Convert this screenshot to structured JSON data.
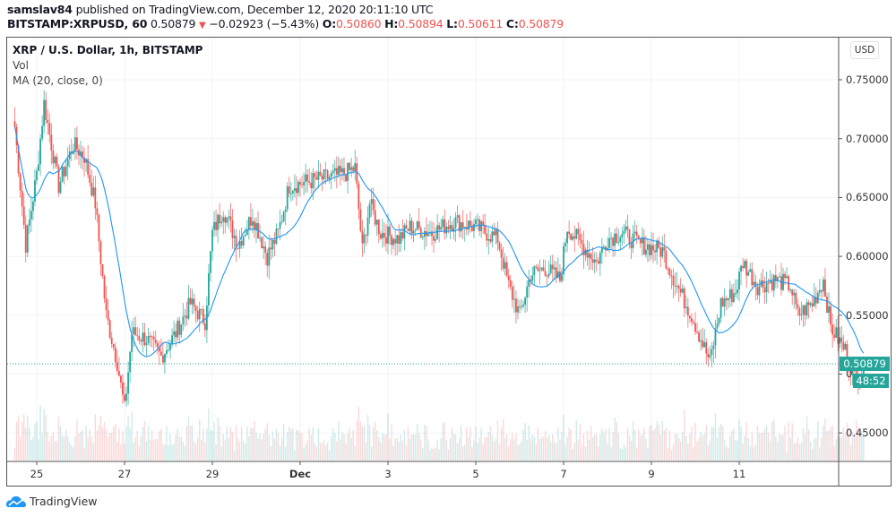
{
  "header": {
    "author": "samslav84",
    "published_text": " published on TradingView.com, December 12, 2020 20:11:10 UTC",
    "symbol": "BITSTAMP:XRPUSD, 60",
    "last_price": "0.50879",
    "change_icon": "down-triangle-icon",
    "change": "−0.02923 (−5.43%)",
    "ohlc": {
      "o_label": "O:",
      "o": "0.50860",
      "h_label": "H:",
      "h": "0.50894",
      "l_label": "L:",
      "l": "0.50611",
      "c_label": "C:",
      "c": "0.50879"
    }
  },
  "legend": {
    "title": "XRP / U.S. Dollar, 1h, BITSTAMP",
    "vol": "Vol",
    "ma": "MA (20, close, 0)"
  },
  "price_axis": {
    "currency": "USD",
    "ticks": [
      "0.75000",
      "0.70000",
      "0.65000",
      "0.60000",
      "0.55000",
      "0.45000"
    ],
    "hidden_tick_partial": "0.",
    "last_price_label": "0.50879",
    "countdown_label": "48:52"
  },
  "time_axis": {
    "ticks": [
      "25",
      "27",
      "29",
      "Dec",
      "3",
      "5",
      "7",
      "9",
      "11"
    ]
  },
  "footer": {
    "brand": "TradingView"
  },
  "colors": {
    "up": "#26a69a",
    "down": "#ef5350",
    "ma": "#2196f3",
    "grid": "#f0f3fa",
    "last_line": "#26a69a"
  },
  "chart_data": {
    "type": "candlestick",
    "title": "XRP / U.S. Dollar, 1h, BITSTAMP",
    "symbol": "BITSTAMP:XRPUSD",
    "interval": "1h",
    "xlabel": "",
    "ylabel": "USD",
    "ylim": [
      0.43,
      0.77
    ],
    "y_ticks": [
      0.45,
      0.55,
      0.6,
      0.65,
      0.7,
      0.75
    ],
    "x_ticks": [
      "25",
      "27",
      "29",
      "Dec",
      "3",
      "5",
      "7",
      "9",
      "11"
    ],
    "grid": true,
    "indicators": [
      "Vol",
      "MA (20, close, 0)"
    ],
    "last": {
      "open": 0.5086,
      "high": 0.50894,
      "low": 0.50611,
      "close": 0.50879,
      "change": -0.02923,
      "change_pct": -5.43
    },
    "approx_close_path": [
      {
        "date": "Nov 24 12:00",
        "close": 0.71
      },
      {
        "date": "Nov 24 18:00",
        "close": 0.61
      },
      {
        "date": "Nov 25 00:00",
        "close": 0.67
      },
      {
        "date": "Nov 25 04:00",
        "close": 0.73
      },
      {
        "date": "Nov 25 12:00",
        "close": 0.66
      },
      {
        "date": "Nov 25 20:00",
        "close": 0.695
      },
      {
        "date": "Nov 26 02:00",
        "close": 0.685
      },
      {
        "date": "Nov 26 08:00",
        "close": 0.645
      },
      {
        "date": "Nov 26 14:00",
        "close": 0.55
      },
      {
        "date": "Nov 26 20:00",
        "close": 0.51
      },
      {
        "date": "Nov 27 00:00",
        "close": 0.47
      },
      {
        "date": "Nov 27 04:00",
        "close": 0.535
      },
      {
        "date": "Nov 27 12:00",
        "close": 0.53
      },
      {
        "date": "Nov 27 20:00",
        "close": 0.515
      },
      {
        "date": "Nov 28 04:00",
        "close": 0.535
      },
      {
        "date": "Nov 28 12:00",
        "close": 0.56
      },
      {
        "date": "Nov 28 20:00",
        "close": 0.545
      },
      {
        "date": "Nov 29 00:00",
        "close": 0.62
      },
      {
        "date": "Nov 29 06:00",
        "close": 0.64
      },
      {
        "date": "Nov 29 14:00",
        "close": 0.61
      },
      {
        "date": "Nov 29 22:00",
        "close": 0.635
      },
      {
        "date": "Nov 30 06:00",
        "close": 0.6
      },
      {
        "date": "Nov 30 12:00",
        "close": 0.62
      },
      {
        "date": "Nov 30 18:00",
        "close": 0.66
      },
      {
        "date": "Dec 1 00:00",
        "close": 0.67
      },
      {
        "date": "Dec 1 06:00",
        "close": 0.675
      },
      {
        "date": "Dec 1 10:00",
        "close": 0.605
      },
      {
        "date": "Dec 1 14:00",
        "close": 0.645
      },
      {
        "date": "Dec 1 20:00",
        "close": 0.62
      },
      {
        "date": "Dec 2 06:00",
        "close": 0.615
      },
      {
        "date": "Dec 2 12:00",
        "close": 0.625
      },
      {
        "date": "Dec 3 00:00",
        "close": 0.62
      },
      {
        "date": "Dec 3 12:00",
        "close": 0.63
      },
      {
        "date": "Dec 4 00:00",
        "close": 0.625
      },
      {
        "date": "Dec 4 12:00",
        "close": 0.615
      },
      {
        "date": "Dec 4 18:00",
        "close": 0.575
      },
      {
        "date": "Dec 5 00:00",
        "close": 0.55
      },
      {
        "date": "Dec 5 06:00",
        "close": 0.585
      },
      {
        "date": "Dec 5 14:00",
        "close": 0.59
      },
      {
        "date": "Dec 5 22:00",
        "close": 0.58
      },
      {
        "date": "Dec 6 02:00",
        "close": 0.625
      },
      {
        "date": "Dec 6 10:00",
        "close": 0.61
      },
      {
        "date": "Dec 6 18:00",
        "close": 0.595
      },
      {
        "date": "Dec 7 00:00",
        "close": 0.615
      },
      {
        "date": "Dec 7 08:00",
        "close": 0.62
      },
      {
        "date": "Dec 7 18:00",
        "close": 0.61
      },
      {
        "date": "Dec 8 06:00",
        "close": 0.605
      },
      {
        "date": "Dec 8 14:00",
        "close": 0.575
      },
      {
        "date": "Dec 8 22:00",
        "close": 0.55
      },
      {
        "date": "Dec 9 08:00",
        "close": 0.51
      },
      {
        "date": "Dec 9 14:00",
        "close": 0.56
      },
      {
        "date": "Dec 9 22:00",
        "close": 0.57
      },
      {
        "date": "Dec 10 02:00",
        "close": 0.595
      },
      {
        "date": "Dec 10 10:00",
        "close": 0.575
      },
      {
        "date": "Dec 10 20:00",
        "close": 0.58
      },
      {
        "date": "Dec 11 04:00",
        "close": 0.575
      },
      {
        "date": "Dec 11 08:00",
        "close": 0.55
      },
      {
        "date": "Dec 11 16:00",
        "close": 0.56
      },
      {
        "date": "Dec 11 22:00",
        "close": 0.58
      },
      {
        "date": "Dec 12 02:00",
        "close": 0.54
      },
      {
        "date": "Dec 12 10:00",
        "close": 0.52
      },
      {
        "date": "Dec 12 16:00",
        "close": 0.495
      },
      {
        "date": "Dec 12 20:00",
        "close": 0.50879
      }
    ]
  }
}
